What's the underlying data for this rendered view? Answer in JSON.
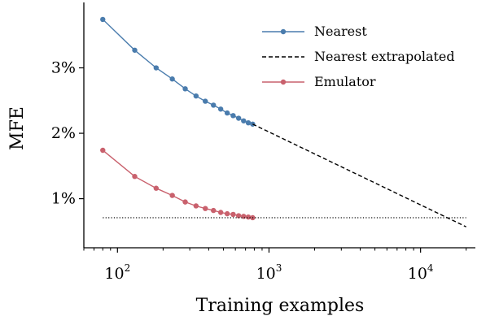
{
  "chart_data": {
    "type": "line",
    "xlabel": "Training examples",
    "ylabel": "MFE",
    "x_scale": "log",
    "xlim": [
      60,
      23000
    ],
    "ylim": [
      0.25,
      4.0
    ],
    "x_ticks": [
      {
        "value": 100,
        "base": "10",
        "exp": "2"
      },
      {
        "value": 1000,
        "base": "10",
        "exp": "3"
      },
      {
        "value": 10000,
        "base": "10",
        "exp": "4"
      }
    ],
    "y_ticks": [
      {
        "value": 1,
        "label": "1%"
      },
      {
        "value": 2,
        "label": "2%"
      },
      {
        "value": 3,
        "label": "3%"
      }
    ],
    "grid": false,
    "legend_position": "top-right",
    "series": [
      {
        "name": "Nearest",
        "style": "line-marker",
        "color": "#4a7cad",
        "x": [
          80,
          130,
          180,
          230,
          280,
          330,
          380,
          430,
          480,
          530,
          580,
          630,
          680,
          730,
          780
        ],
        "y": [
          3.74,
          3.27,
          3.0,
          2.83,
          2.68,
          2.57,
          2.49,
          2.43,
          2.37,
          2.31,
          2.27,
          2.23,
          2.19,
          2.16,
          2.14
        ]
      },
      {
        "name": "Nearest extrapolated",
        "style": "dashed",
        "color": "#000000",
        "x": [
          780,
          20000
        ],
        "y": [
          2.14,
          0.57
        ]
      },
      {
        "name": "Emulator",
        "style": "line-marker",
        "color": "#c9616d",
        "x": [
          80,
          130,
          180,
          230,
          280,
          330,
          380,
          430,
          480,
          530,
          580,
          630,
          680,
          730,
          780
        ],
        "y": [
          1.74,
          1.34,
          1.16,
          1.05,
          0.95,
          0.89,
          0.85,
          0.82,
          0.79,
          0.77,
          0.76,
          0.74,
          0.73,
          0.72,
          0.71
        ]
      },
      {
        "style": "dotted",
        "color": "#000000",
        "x": [
          80,
          20000
        ],
        "y": [
          0.71,
          0.71
        ]
      }
    ]
  }
}
